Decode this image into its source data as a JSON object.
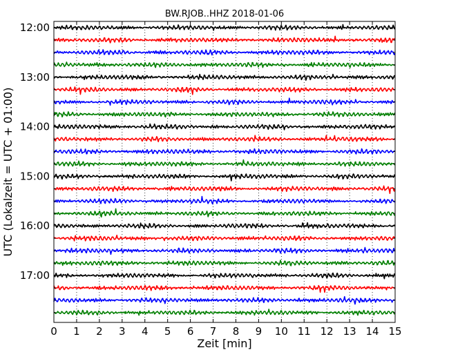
{
  "chart_data": {
    "type": "line",
    "title": "BW.RJOB..HHZ 2018-01-06",
    "xlabel": "Zeit  [min]",
    "ylabel": "UTC (Lokalzeit = UTC + 01:00)",
    "xlim": [
      0,
      15
    ],
    "x_ticks": [
      "0",
      "1",
      "2",
      "3",
      "4",
      "5",
      "6",
      "7",
      "8",
      "9",
      "10",
      "11",
      "12",
      "13",
      "14",
      "15"
    ],
    "y_tick_labels": [
      "12:00",
      "13:00",
      "14:00",
      "15:00",
      "16:00",
      "17:00"
    ],
    "grid": "vertical dotted",
    "traces_per_hour": 4,
    "trace_minutes": 15,
    "color_cycle": [
      "#000000",
      "#ff0000",
      "#0000ff",
      "#007f00"
    ],
    "trace_start_times": [
      "12:00",
      "12:15",
      "12:30",
      "12:45",
      "13:00",
      "13:15",
      "13:30",
      "13:45",
      "14:00",
      "14:15",
      "14:30",
      "14:45",
      "15:00",
      "15:15",
      "15:30",
      "15:45",
      "16:00",
      "16:15",
      "16:30",
      "16:45",
      "17:00",
      "17:15",
      "17:30",
      "17:45"
    ]
  }
}
